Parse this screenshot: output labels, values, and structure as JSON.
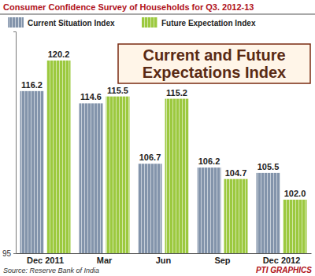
{
  "chart_data": {
    "type": "bar",
    "title": "Consumer Confidence Survey of Households for Q3. 2012-13",
    "subtitle": "Current and Future Expectations Index",
    "annotations": [
      "Source: Reserve Bank of India",
      "PTI GRAPHICS"
    ],
    "categories": [
      "Dec 2011",
      "Mar",
      "Jun",
      "Sep",
      "Dec 2012"
    ],
    "series": [
      {
        "name": "Current Situation Index",
        "color": "#8394ab",
        "values": [
          116.2,
          114.6,
          106.7,
          106.2,
          105.5
        ]
      },
      {
        "name": "Future Expectation Index",
        "color": "#9cc93f",
        "values": [
          120.2,
          115.5,
          115.2,
          104.7,
          102.0
        ],
        "value_labels": [
          "120.2",
          "115.5",
          "115.2",
          "104.7",
          "102.0"
        ]
      }
    ],
    "ylim": [
      95,
      124
    ],
    "yticks": [
      95
    ],
    "grid": false,
    "legend": "top",
    "data_labels": true
  }
}
